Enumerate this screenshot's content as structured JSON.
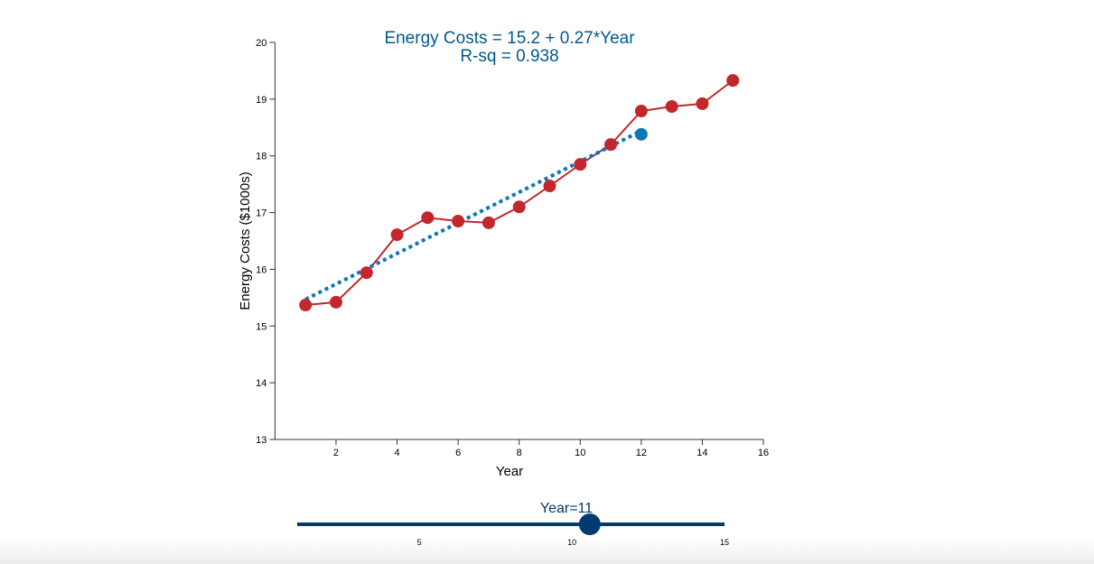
{
  "chart_data": {
    "type": "line",
    "title": "Energy Costs = 15.2 + 0.27*Year",
    "subtitle": "R-sq = 0.938",
    "xlabel": "Year",
    "ylabel": "Energy Costs ($1000s)",
    "xlim": [
      0,
      16
    ],
    "ylim": [
      13,
      20
    ],
    "xticks": [
      2,
      4,
      6,
      8,
      10,
      12,
      14,
      16
    ],
    "yticks": [
      13,
      14,
      15,
      16,
      17,
      18,
      19,
      20
    ],
    "grid": false,
    "series": [
      {
        "x": [
          1,
          2,
          3,
          4,
          5,
          6,
          7,
          8,
          9,
          10,
          11,
          12,
          13,
          14,
          15
        ],
        "values": [
          15.37,
          15.42,
          15.94,
          16.61,
          16.91,
          16.85,
          16.82,
          17.1,
          17.47,
          17.85,
          18.2,
          18.79,
          18.87,
          18.92,
          19.33
        ],
        "color": "#c1272d"
      }
    ],
    "fit": {
      "intercept": 15.2,
      "slope": 0.27,
      "x_start": 1,
      "x_end": 12,
      "color": "#0a77b8",
      "style": "dotted"
    },
    "prediction": {
      "x": 12,
      "y": 18.38,
      "color": "#0a77b8"
    }
  },
  "slider": {
    "label": "Year=11",
    "value": 11,
    "min": 1,
    "max": 15,
    "ticks": [
      "5",
      "10",
      "15"
    ],
    "color": "#003a70"
  },
  "colors": {
    "title": "#005a8c",
    "slider_label": "#003a70"
  }
}
